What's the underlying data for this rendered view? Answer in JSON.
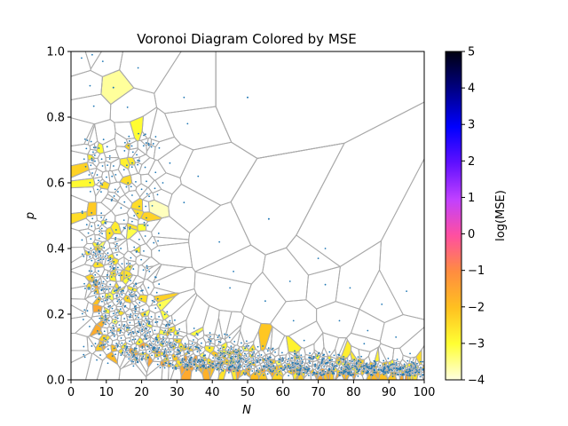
{
  "chart_data": {
    "type": "scatter",
    "title": "Voronoi Diagram Colored by MSE",
    "xlabel": "N",
    "ylabel": "p",
    "xlim": [
      0,
      100
    ],
    "ylim": [
      0,
      1.0
    ],
    "x_ticks": [
      "0",
      "10",
      "20",
      "30",
      "40",
      "50",
      "60",
      "70",
      "80",
      "90",
      "100"
    ],
    "y_ticks": [
      "0.0",
      "0.2",
      "0.4",
      "0.6",
      "0.8",
      "1.0"
    ],
    "grid": false,
    "colorbar": {
      "label": "log(MSE)",
      "range": [
        -4,
        5
      ],
      "ticks": [
        "5",
        "4",
        "3",
        "2",
        "1",
        "0",
        "−1",
        "−2",
        "−3",
        "−4"
      ],
      "colormap": [
        "#ffffe0",
        "#ffff33",
        "#ffc020",
        "#ff8c40",
        "#ff4fa0",
        "#c040ff",
        "#6010ff",
        "#0000ff",
        "#00008a",
        "#000010"
      ]
    },
    "edge_color": "#aaaaaa",
    "point_color": "#1f77b4",
    "points_sample": [
      {
        "x": 12,
        "y": 0.89,
        "logmse": -3.6
      },
      {
        "x": 30,
        "y": 0.12,
        "logmse": -2.4
      },
      {
        "x": 40,
        "y": 0.05,
        "logmse": -2.0
      },
      {
        "x": 45,
        "y": 0.03,
        "logmse": -0.5
      },
      {
        "x": 50,
        "y": 0.86,
        "logmse": -4.0
      },
      {
        "x": 56,
        "y": 0.49,
        "logmse": -4.0
      },
      {
        "x": 89,
        "y": 0.02,
        "logmse": -3.0
      }
    ]
  }
}
